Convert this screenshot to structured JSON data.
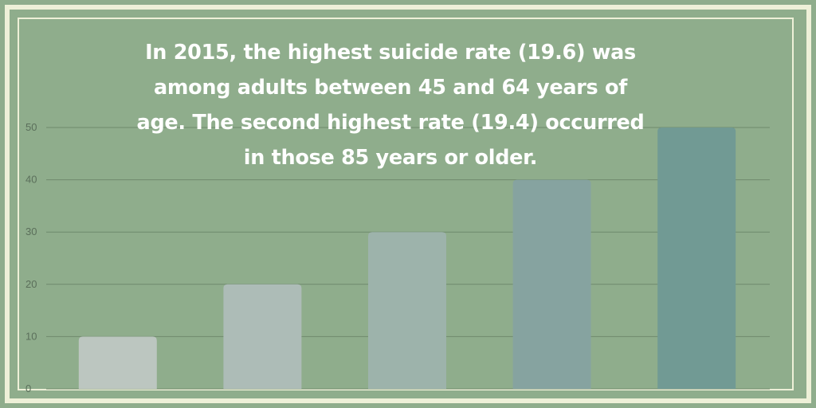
{
  "headline": {
    "lines": [
      "In 2015, the highest suicide rate (19.6) was",
      "among adults between 45 and 64 years of",
      "age. The second highest rate (19.4) occurred",
      "in those 85 years or older."
    ]
  },
  "colors": {
    "background": "#8fad8c",
    "frame": "#eef0d8",
    "headline_text": "#ffffff",
    "gridline": "#6f8a6c",
    "bars": [
      "#bcc6c0",
      "#adbcb7",
      "#9db3ab",
      "#86a3a0",
      "#719a94"
    ]
  },
  "chart_data": {
    "type": "bar",
    "title": "",
    "xlabel": "",
    "ylabel": "",
    "categories": [
      "",
      "",
      "",
      "",
      ""
    ],
    "values": [
      10,
      20,
      30,
      40,
      50
    ],
    "ylim": [
      0,
      50
    ],
    "yticks": [
      "0",
      "10",
      "20",
      "30",
      "40",
      "50"
    ],
    "grid": true,
    "legend": "none"
  }
}
